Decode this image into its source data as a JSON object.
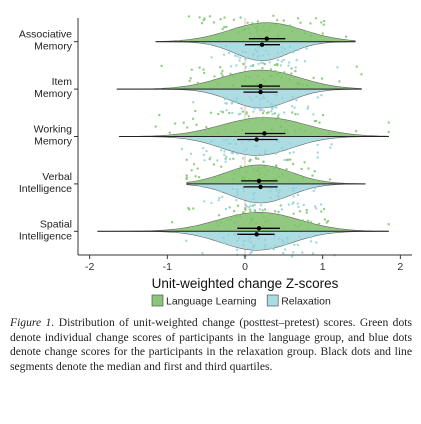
{
  "chart_data": {
    "type": "split-violin",
    "title": "",
    "xlabel": "Unit-weighted change Z-scores",
    "ylabel": "",
    "xlim": [
      -2.15,
      2.15
    ],
    "x_ticks": [
      "-2",
      "-1",
      "0",
      "1",
      "2"
    ],
    "reference_line_x": 0,
    "grid": false,
    "legend": {
      "placement": "bottom",
      "entries": [
        "Language Learning",
        "Relaxation"
      ]
    },
    "categories": [
      {
        "label": [
          "Associative",
          "Memory"
        ],
        "min": -1.15,
        "max": 1.42
      },
      {
        "label": [
          "Item",
          "Memory"
        ],
        "min": -1.65,
        "max": 1.5
      },
      {
        "label": [
          "Working",
          "Memory"
        ],
        "min": -1.62,
        "max": 1.85
      },
      {
        "label": [
          "Verbal",
          "Intelligence"
        ],
        "min": -0.75,
        "max": 1.55
      },
      {
        "label": [
          "Spatial",
          "Intelligence"
        ],
        "min": -1.9,
        "max": 1.85
      }
    ],
    "series": [
      {
        "name": "Language Learning",
        "side": "upper",
        "color": "#8cc67a",
        "dot_color": "#7cc46a",
        "stats": [
          {
            "median": 0.28,
            "q1": 0.05,
            "q3": 0.52,
            "spread": 0.48,
            "n": 60
          },
          {
            "median": 0.2,
            "q1": -0.05,
            "q3": 0.45,
            "spread": 0.5,
            "n": 60
          },
          {
            "median": 0.25,
            "q1": 0.0,
            "q3": 0.52,
            "spread": 0.55,
            "n": 60
          },
          {
            "median": 0.18,
            "q1": -0.05,
            "q3": 0.42,
            "spread": 0.42,
            "n": 60
          },
          {
            "median": 0.18,
            "q1": -0.1,
            "q3": 0.45,
            "spread": 0.52,
            "n": 60
          }
        ]
      },
      {
        "name": "Relaxation",
        "side": "lower",
        "color": "#a9dbe2",
        "dot_color": "#8fd0dc",
        "stats": [
          {
            "median": 0.22,
            "q1": 0.0,
            "q3": 0.45,
            "spread": 0.35,
            "n": 55
          },
          {
            "median": 0.2,
            "q1": -0.02,
            "q3": 0.42,
            "spread": 0.38,
            "n": 55
          },
          {
            "median": 0.15,
            "q1": -0.1,
            "q3": 0.42,
            "spread": 0.45,
            "n": 55
          },
          {
            "median": 0.2,
            "q1": -0.02,
            "q3": 0.42,
            "spread": 0.38,
            "n": 55
          },
          {
            "median": 0.15,
            "q1": -0.1,
            "q3": 0.38,
            "spread": 0.45,
            "n": 55
          }
        ]
      }
    ],
    "colors": {
      "axis": "#333333",
      "reference_line": "#f2c9b8",
      "stat_marks": "#000000"
    }
  },
  "caption": {
    "label": "Figure 1.",
    "text": "Distribution of unit-weighted change (posttest–pretest) scores. Green dots denote individual change scores of participants in the language group, and blue dots denote change scores for the participants in the relaxation group. Black dots and line segments denote the median and first and third quartiles."
  }
}
